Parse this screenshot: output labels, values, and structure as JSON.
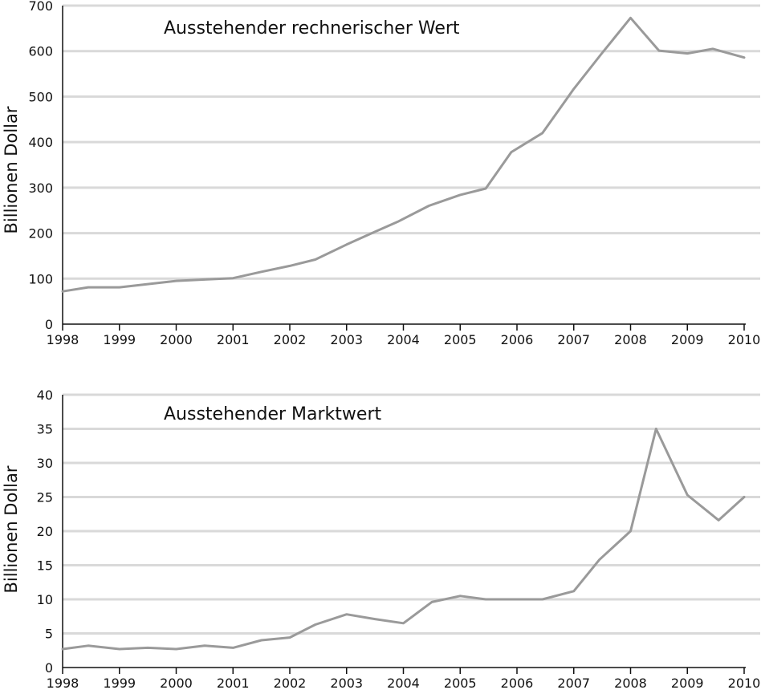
{
  "colors": {
    "line": "#9a9a9a",
    "grid": "#d9d9d9",
    "axis": "#111111",
    "text": "#111111"
  },
  "chart_data": [
    {
      "type": "line",
      "title": "Ausstehender rechnerischer Wert",
      "xlabel": "",
      "ylabel": "Billionen Dollar",
      "xlim": [
        1998,
        2010
      ],
      "ylim": [
        0,
        700
      ],
      "yticks": [
        0,
        100,
        200,
        300,
        400,
        500,
        600,
        700
      ],
      "xticks": [
        "1998",
        "1999",
        "2000",
        "2001",
        "2002",
        "2003",
        "2004",
        "2005",
        "2006",
        "2007",
        "2008",
        "2009",
        "2010"
      ],
      "grid": true,
      "legend": "none",
      "series": [
        {
          "x": [
            1998,
            1998.45,
            1999,
            1999.5,
            2000,
            2000.5,
            2001,
            2001.5,
            2002,
            2002.45,
            2003,
            2003.5,
            2003.9,
            2004.45,
            2005,
            2005.45,
            2005.9,
            2006.45,
            2007,
            2007.5,
            2008,
            2008.5,
            2009,
            2009.45,
            2010
          ],
          "y": [
            72,
            81,
            81,
            88,
            95,
            98,
            101,
            115,
            128,
            142,
            175,
            203,
            225,
            260,
            284,
            298,
            378,
            420,
            517,
            596,
            673,
            601,
            595,
            605,
            586
          ]
        }
      ]
    },
    {
      "type": "line",
      "title": "Ausstehender Marktwert",
      "xlabel": "",
      "ylabel": "Billionen Dollar",
      "xlim": [
        1998,
        2010
      ],
      "ylim": [
        0,
        40
      ],
      "yticks": [
        0,
        5,
        10,
        15,
        20,
        25,
        30,
        35,
        40
      ],
      "xticks": [
        "1998",
        "1999",
        "2000",
        "2001",
        "2002",
        "2003",
        "2004",
        "2005",
        "2006",
        "2007",
        "2008",
        "2009",
        "2010"
      ],
      "grid": true,
      "legend": "none",
      "series": [
        {
          "x": [
            1998,
            1998.45,
            1999,
            1999.5,
            2000,
            2000.5,
            2001,
            2001.5,
            2002,
            2002.45,
            2003,
            2003.5,
            2004,
            2004.5,
            2005,
            2005.45,
            2006,
            2006.45,
            2007,
            2007.45,
            2008,
            2008.45,
            2009,
            2009.55,
            2010
          ],
          "y": [
            2.7,
            3.2,
            2.7,
            2.9,
            2.7,
            3.2,
            2.9,
            4.0,
            4.4,
            6.3,
            7.8,
            7.1,
            6.5,
            9.6,
            10.5,
            10.0,
            10.0,
            10.0,
            11.2,
            15.8,
            20.0,
            35.0,
            25.3,
            21.6,
            25.0
          ]
        }
      ]
    }
  ]
}
